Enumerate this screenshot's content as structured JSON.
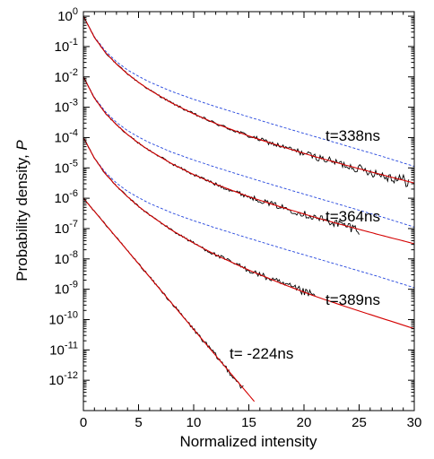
{
  "chart_data": {
    "type": "line",
    "xlabel": "Normalized intensity",
    "ylabel_prefix": "Probability density, ",
    "ylabel_symbol": "P",
    "xlim": [
      0,
      30
    ],
    "ylim_log10": [
      -13,
      0.15
    ],
    "yscale": "log",
    "grid": false,
    "x_ticks": [
      0,
      5,
      10,
      15,
      20,
      25,
      30
    ],
    "y_tick_exponents": [
      0,
      -1,
      -2,
      -3,
      -4,
      -5,
      -6,
      -7,
      -8,
      -9,
      -10,
      -11,
      -12
    ],
    "y_tick_base": "10",
    "colors": {
      "measured": "#000000",
      "fit": "#d40000",
      "reference": "#2244dd"
    },
    "series": [
      {
        "label": "t=338ns",
        "x_range": [
          0,
          30
        ],
        "offset_decades": 0,
        "measured_x_end": 29.5,
        "fit_log10": [
          [
            0,
            0
          ],
          [
            1,
            -0.7
          ],
          [
            2,
            -1.2
          ],
          [
            3,
            -1.58
          ],
          [
            4,
            -1.9
          ],
          [
            5,
            -2.18
          ],
          [
            6,
            -2.43
          ],
          [
            8,
            -2.86
          ],
          [
            10,
            -3.22
          ],
          [
            12,
            -3.54
          ],
          [
            15,
            -3.95
          ],
          [
            18,
            -4.3
          ],
          [
            21,
            -4.63
          ],
          [
            24,
            -4.93
          ],
          [
            27,
            -5.22
          ],
          [
            30,
            -5.5
          ]
        ],
        "reference_log10": [
          [
            0,
            0
          ],
          [
            1,
            -0.68
          ],
          [
            2,
            -1.15
          ],
          [
            3,
            -1.5
          ],
          [
            4,
            -1.77
          ],
          [
            5,
            -1.98
          ],
          [
            6,
            -2.17
          ],
          [
            8,
            -2.48
          ],
          [
            10,
            -2.74
          ],
          [
            12,
            -2.98
          ],
          [
            15,
            -3.32
          ],
          [
            18,
            -3.65
          ],
          [
            21,
            -3.97
          ],
          [
            24,
            -4.29
          ],
          [
            27,
            -4.61
          ],
          [
            30,
            -4.95
          ]
        ]
      },
      {
        "label": "t=364ns",
        "x_range": [
          0,
          30
        ],
        "offset_decades": -2,
        "measured_x_end": 25,
        "fit_log10": [
          [
            0,
            0
          ],
          [
            1,
            -0.7
          ],
          [
            2,
            -1.2
          ],
          [
            3,
            -1.58
          ],
          [
            4,
            -1.9
          ],
          [
            5,
            -2.18
          ],
          [
            6,
            -2.43
          ],
          [
            8,
            -2.86
          ],
          [
            10,
            -3.22
          ],
          [
            12,
            -3.54
          ],
          [
            15,
            -3.95
          ],
          [
            18,
            -4.3
          ],
          [
            21,
            -4.63
          ],
          [
            24,
            -4.93
          ],
          [
            27,
            -5.22
          ],
          [
            30,
            -5.5
          ]
        ],
        "reference_log10": [
          [
            0,
            0
          ],
          [
            1,
            -0.68
          ],
          [
            2,
            -1.15
          ],
          [
            3,
            -1.5
          ],
          [
            4,
            -1.77
          ],
          [
            5,
            -1.98
          ],
          [
            6,
            -2.17
          ],
          [
            8,
            -2.48
          ],
          [
            10,
            -2.74
          ],
          [
            12,
            -2.98
          ],
          [
            15,
            -3.32
          ],
          [
            18,
            -3.65
          ],
          [
            21,
            -3.97
          ],
          [
            24,
            -4.29
          ],
          [
            27,
            -4.61
          ],
          [
            30,
            -4.95
          ]
        ]
      },
      {
        "label": "t=389ns",
        "x_range": [
          0,
          30
        ],
        "offset_decades": -4,
        "measured_x_end": 21,
        "fit_log10": [
          [
            0,
            0
          ],
          [
            1,
            -0.68
          ],
          [
            2,
            -1.2
          ],
          [
            3,
            -1.6
          ],
          [
            4,
            -1.95
          ],
          [
            5,
            -2.27
          ],
          [
            6,
            -2.55
          ],
          [
            8,
            -3.05
          ],
          [
            10,
            -3.48
          ],
          [
            12,
            -3.87
          ],
          [
            15,
            -4.37
          ],
          [
            18,
            -4.82
          ],
          [
            21,
            -5.23
          ],
          [
            24,
            -5.6
          ],
          [
            27,
            -5.95
          ],
          [
            30,
            -6.3
          ]
        ],
        "reference_log10": [
          [
            0,
            0
          ],
          [
            1,
            -0.68
          ],
          [
            2,
            -1.15
          ],
          [
            3,
            -1.5
          ],
          [
            4,
            -1.77
          ],
          [
            5,
            -1.98
          ],
          [
            6,
            -2.17
          ],
          [
            8,
            -2.48
          ],
          [
            10,
            -2.74
          ],
          [
            12,
            -2.98
          ],
          [
            15,
            -3.32
          ],
          [
            18,
            -3.65
          ],
          [
            21,
            -3.97
          ],
          [
            24,
            -4.29
          ],
          [
            27,
            -4.61
          ],
          [
            30,
            -4.95
          ]
        ]
      },
      {
        "label": "t= -224ns",
        "x_range": [
          0,
          15.5
        ],
        "offset_decades": -6,
        "measured_x_end": 14.5,
        "fit_log10": [
          [
            0,
            0
          ],
          [
            15.5,
            -6.7
          ]
        ],
        "reference_log10": []
      }
    ]
  }
}
